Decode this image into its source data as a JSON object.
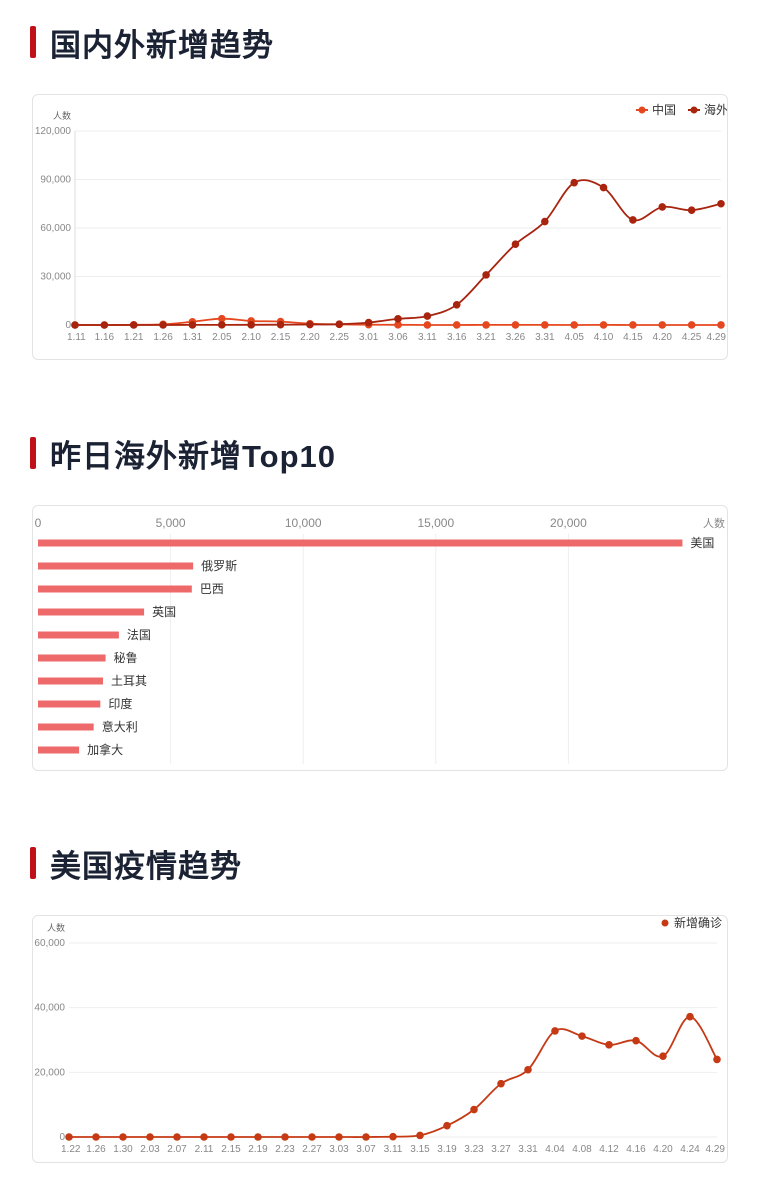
{
  "sections": [
    {
      "title": "国内外新增趋势"
    },
    {
      "title": "昨日海外新增Top10"
    },
    {
      "title": "美国疫情趋势"
    }
  ],
  "colors": {
    "accent_bar": "#c0101a",
    "china": "#e5481f",
    "overseas": "#a8240e",
    "top10_bar": "#ee6a6a",
    "us": "#c53a14",
    "grid": "#eeeeee",
    "axis_text": "#888888"
  },
  "chart_data": [
    {
      "type": "line",
      "ylabel": "人数",
      "ylim": [
        0,
        120000
      ],
      "yticks": [
        "0",
        "30,000",
        "60,000",
        "90,000",
        "120,000"
      ],
      "ytick_values": [
        0,
        30000,
        60000,
        90000,
        120000
      ],
      "xtick_labels": [
        "1.11",
        "1.16",
        "1.21",
        "1.26",
        "1.31",
        "2.05",
        "2.10",
        "2.15",
        "2.20",
        "2.25",
        "3.01",
        "3.06",
        "3.11",
        "3.16",
        "3.21",
        "3.26",
        "3.31",
        "4.05",
        "4.10",
        "4.15",
        "4.20",
        "4.25",
        "4.29"
      ],
      "legend": [
        "中国",
        "海外"
      ],
      "legend_position": "top-right",
      "x": [
        "1.11",
        "1.16",
        "1.21",
        "1.26",
        "1.31",
        "2.05",
        "2.10",
        "2.15",
        "2.20",
        "2.25",
        "3.01",
        "3.06",
        "3.11",
        "3.16",
        "3.21",
        "3.26",
        "3.31",
        "4.05",
        "4.10",
        "4.15",
        "4.20",
        "4.25",
        "4.29"
      ],
      "series": [
        {
          "name": "中国",
          "values": [
            0,
            0,
            100,
            400,
            2000,
            3900,
            2500,
            2100,
            800,
            400,
            200,
            100,
            30,
            20,
            50,
            60,
            50,
            30,
            40,
            20,
            10,
            12,
            10
          ]
        },
        {
          "name": "海外",
          "values": [
            0,
            0,
            0,
            0,
            50,
            80,
            100,
            200,
            300,
            500,
            1500,
            3800,
            5500,
            12500,
            31000,
            50000,
            64000,
            88000,
            85000,
            65000,
            73000,
            71000,
            75000
          ]
        }
      ]
    },
    {
      "type": "bar",
      "orientation": "horizontal",
      "xlabel": "人数",
      "xlim": [
        0,
        25000
      ],
      "xticks": [
        "0",
        "5,000",
        "10,000",
        "15,000",
        "20,000"
      ],
      "xtick_values": [
        0,
        5000,
        10000,
        15000,
        20000
      ],
      "categories": [
        "美国",
        "俄罗斯",
        "巴西",
        "英国",
        "法国",
        "秘鲁",
        "土耳其",
        "印度",
        "意大利",
        "加拿大"
      ],
      "values": [
        24300,
        5850,
        5800,
        4000,
        3050,
        2550,
        2450,
        2350,
        2100,
        1550
      ]
    },
    {
      "type": "line",
      "ylabel": "人数",
      "ylim": [
        0,
        60000
      ],
      "yticks": [
        "0",
        "20,000",
        "40,000",
        "60,000"
      ],
      "ytick_values": [
        0,
        20000,
        40000,
        60000
      ],
      "xtick_labels": [
        "1.22",
        "1.26",
        "1.30",
        "2.03",
        "2.07",
        "2.11",
        "2.15",
        "2.19",
        "2.23",
        "2.27",
        "3.03",
        "3.07",
        "3.11",
        "3.15",
        "3.19",
        "3.23",
        "3.27",
        "3.31",
        "4.04",
        "4.08",
        "4.12",
        "4.16",
        "4.20",
        "4.24",
        "4.29"
      ],
      "legend": [
        "新增确诊"
      ],
      "legend_position": "top-right",
      "series": [
        {
          "name": "新增确诊",
          "values": [
            0,
            0,
            0,
            0,
            0,
            0,
            0,
            0,
            0,
            0,
            0,
            0,
            100,
            500,
            3500,
            8500,
            16500,
            20800,
            32800,
            31200,
            28500,
            29800,
            25000,
            37200,
            24000
          ]
        }
      ]
    }
  ]
}
